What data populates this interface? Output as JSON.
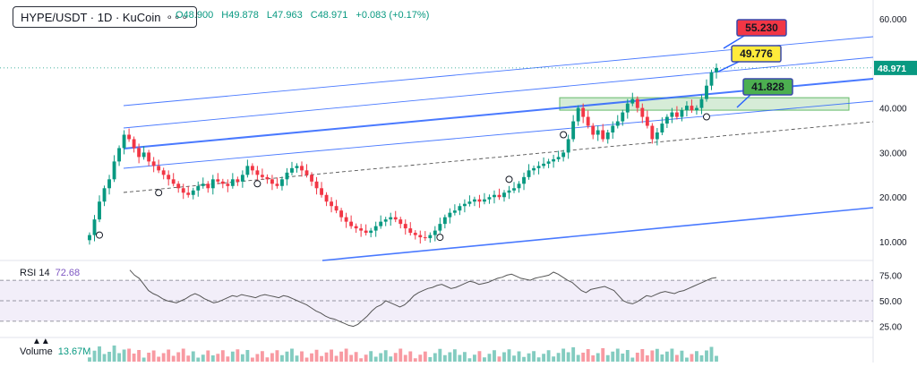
{
  "header": {
    "symbol": "HYPE/USDT · 1D · KuCoin",
    "ohlc": {
      "open": "O48.900",
      "high": "H49.878",
      "low": "L47.963",
      "close": "C48.971",
      "change": "+0.083 (+0.17%)"
    }
  },
  "indicators": {
    "rsi_label": "RSI 14",
    "rsi_value": "72.68",
    "volume_label": "Volume",
    "volume_value": "13.67M"
  },
  "colors": {
    "up": "#089981",
    "down": "#f23645",
    "channel": "#2962ff",
    "rsi": "#7e57c2",
    "zone": "#c8e6c9",
    "label_red": "#f23645",
    "label_yellow": "#ffeb3b",
    "label_green": "#4caf50"
  },
  "chart_data": {
    "type": "candlestick",
    "price_axis": {
      "ticks": [
        10,
        20,
        30,
        40,
        50,
        60
      ],
      "tick_labels": [
        "10.000",
        "20.000",
        "30.000",
        "40.000",
        "50.000",
        "60.000"
      ],
      "range": [
        6,
        63
      ]
    },
    "last_price": "48.971",
    "price_labels": [
      {
        "value": "55.230",
        "color": "red"
      },
      {
        "value": "49.776",
        "color": "yellow"
      },
      {
        "value": "41.828",
        "color": "green"
      }
    ],
    "zone": {
      "low": 39.5,
      "high": 42.3
    },
    "closes": [
      11.5,
      15,
      19,
      22,
      24,
      28,
      31,
      34,
      33,
      31,
      29,
      30,
      28,
      27,
      26,
      25,
      24,
      23,
      22,
      21,
      20.5,
      21.5,
      22.5,
      23,
      22,
      24,
      23.5,
      23,
      22.5,
      24,
      23.5,
      25,
      27,
      26,
      25,
      24.5,
      24,
      23,
      22.5,
      24,
      25.5,
      26.5,
      27,
      26,
      25,
      23.5,
      22,
      20.5,
      19,
      18,
      17,
      15.5,
      14.5,
      13.5,
      13,
      12.5,
      12,
      12.5,
      13.5,
      14.5,
      15,
      15.5,
      15,
      14,
      13,
      12,
      11.5,
      11,
      10.8,
      11.5,
      12.5,
      14,
      15.5,
      16.5,
      17,
      18,
      18.5,
      19,
      19.5,
      19,
      19.5,
      20,
      20.5,
      20,
      21,
      21.5,
      22,
      23,
      24.5,
      26,
      26.5,
      27,
      27.5,
      28,
      28.5,
      29,
      30,
      33,
      37,
      40,
      38,
      36,
      34,
      35,
      33,
      34.5,
      36,
      37,
      39,
      41,
      42,
      40,
      38,
      36,
      33,
      34.5,
      36.5,
      38,
      39,
      38,
      39.5,
      40.5,
      39.5,
      40,
      42,
      45,
      48,
      48.97
    ],
    "rsi": {
      "ticks": [
        25,
        50,
        75
      ],
      "tick_labels": [
        "25.00",
        "50.00",
        "75.00"
      ],
      "overbought": 70,
      "oversold": 30,
      "values": [
        80,
        75,
        72,
        66,
        60,
        57,
        55,
        52,
        50,
        49,
        48,
        50,
        52,
        55,
        57,
        55,
        52,
        50,
        48,
        49,
        51,
        53,
        55,
        54,
        56,
        55,
        54,
        53,
        55,
        56,
        55,
        54,
        53,
        55,
        54,
        52,
        50,
        48,
        46,
        43,
        40,
        38,
        35,
        33,
        32,
        30,
        28,
        26,
        25,
        27,
        31,
        35,
        40,
        44,
        46,
        50,
        48,
        46,
        44,
        46,
        50,
        55,
        58,
        60,
        62,
        63,
        65,
        66,
        64,
        62,
        63,
        65,
        67,
        69,
        68,
        66,
        67,
        68,
        70,
        72,
        73,
        75,
        76,
        74,
        72,
        71,
        70,
        72,
        73,
        74,
        75,
        78,
        76,
        73,
        70,
        68,
        64,
        60,
        58,
        61,
        62,
        63,
        64,
        62,
        60,
        55,
        50,
        48,
        47,
        49,
        52,
        55,
        54,
        56,
        58,
        59,
        58,
        57,
        59,
        60,
        62,
        64,
        66,
        68,
        70,
        72,
        72.68
      ]
    }
  }
}
